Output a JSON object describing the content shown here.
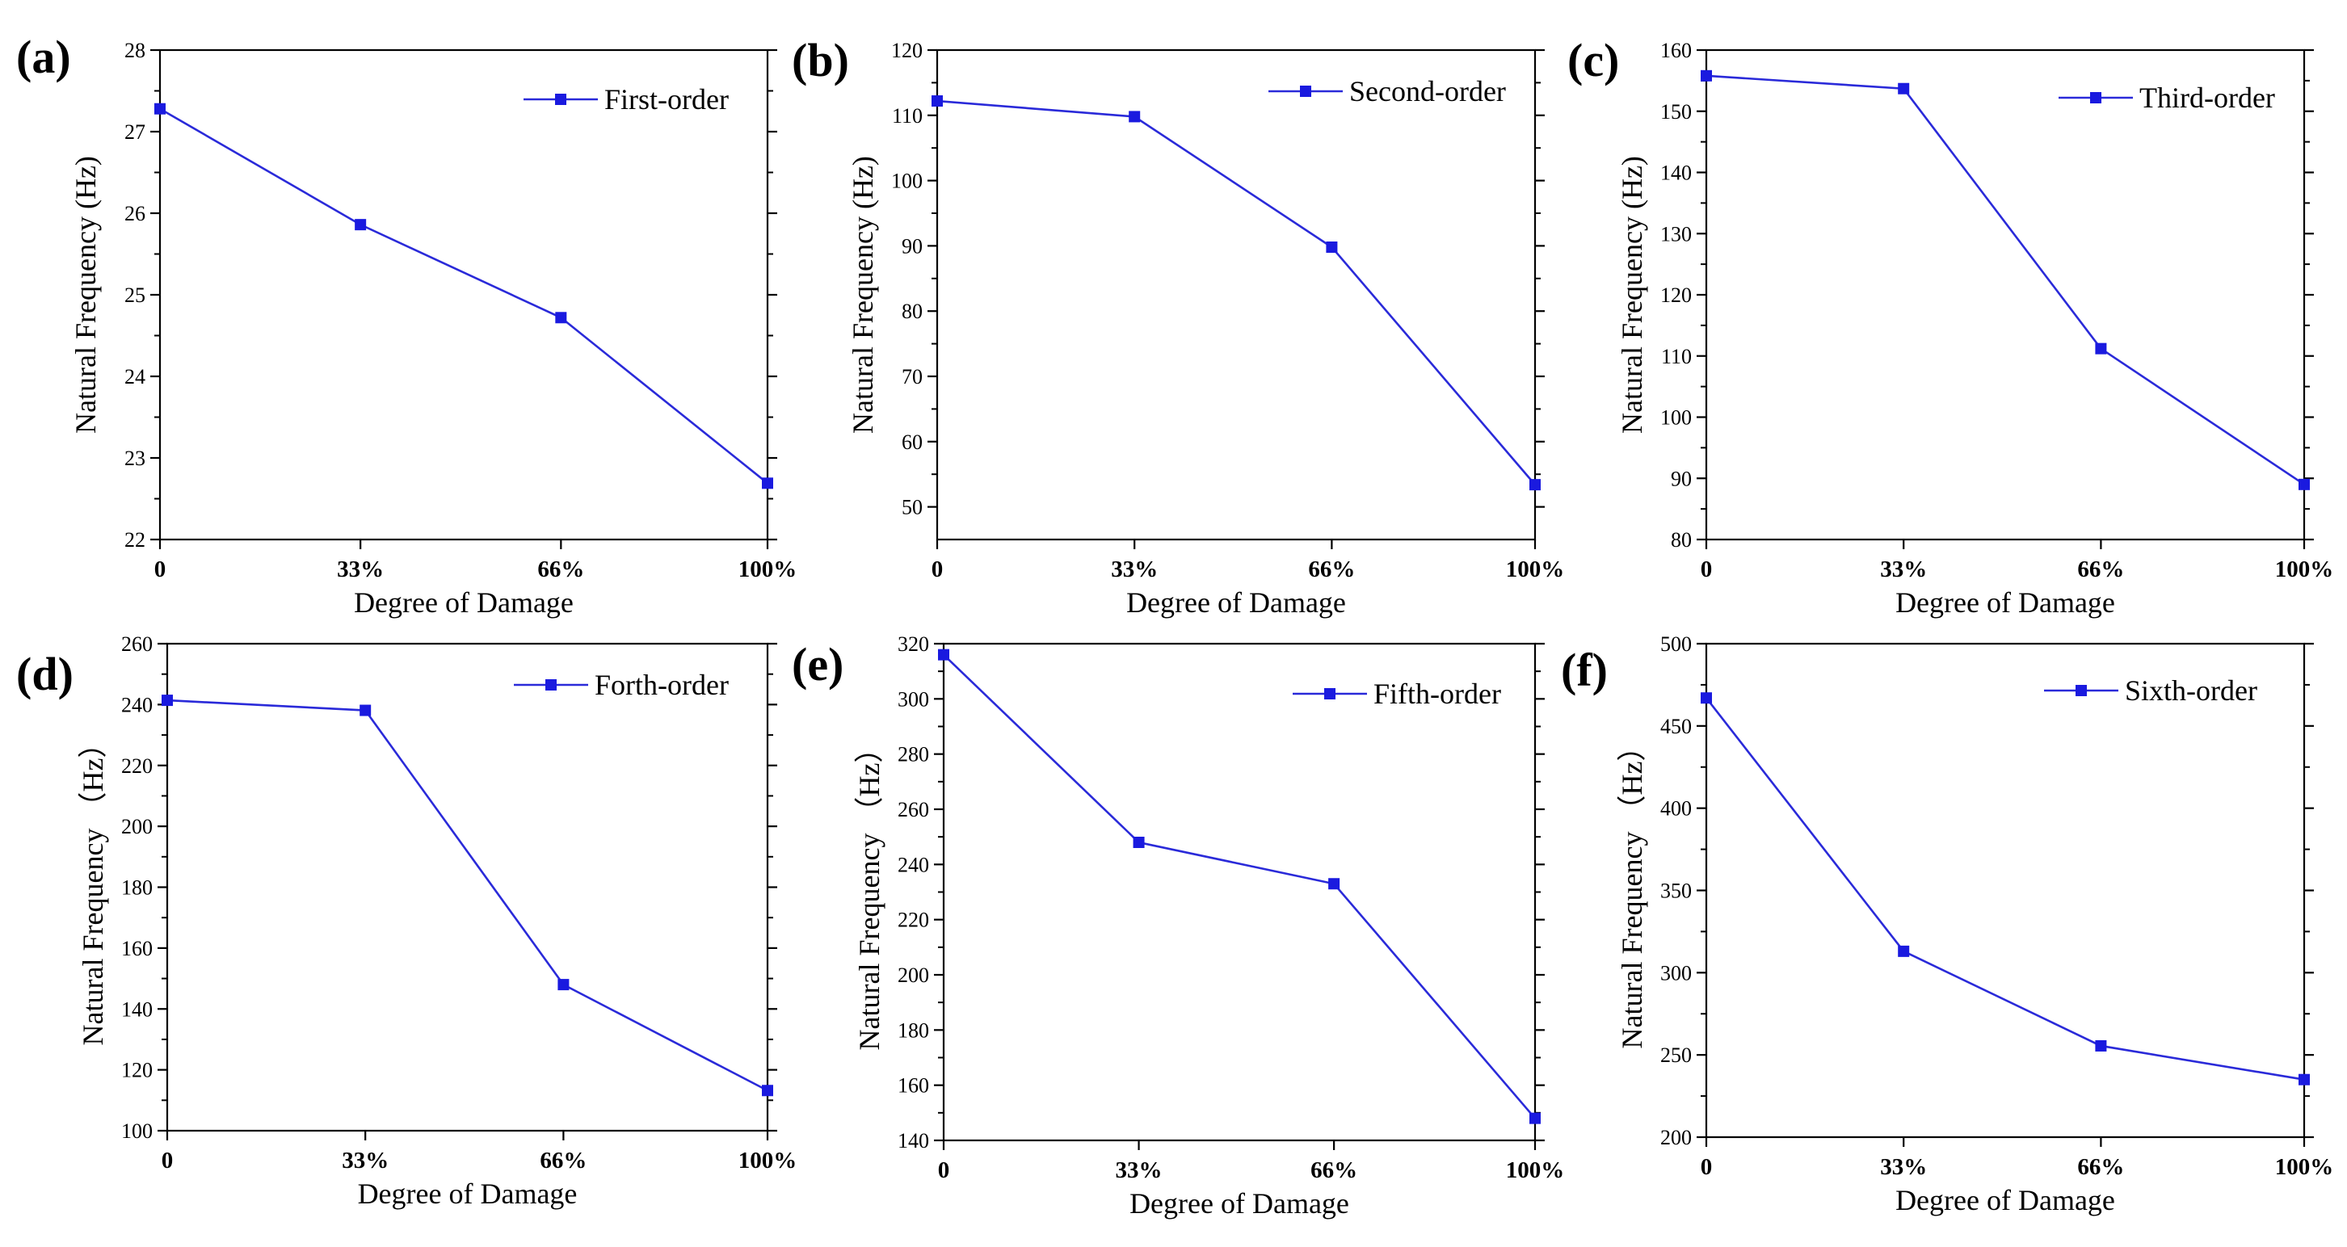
{
  "figure": {
    "accent_color": "#1a1adf",
    "marker_icon": "square-marker",
    "series_line_color": "#2a2ad9"
  },
  "chart_data": [
    {
      "type": "line",
      "panel_label": "(a)",
      "xlabel": "Degree of Damage",
      "ylabel": "Natural Frequency (Hz)",
      "categories": [
        "0",
        "33%",
        "66%",
        "100%"
      ],
      "x": [
        0,
        33,
        66,
        100
      ],
      "xlim": [
        0,
        100
      ],
      "ylim": [
        22,
        28
      ],
      "yticks": [
        22,
        23,
        24,
        25,
        26,
        27,
        28
      ],
      "grid": false,
      "legend_position": "top-right",
      "series": [
        {
          "name": "First-order",
          "values": [
            27.28,
            25.86,
            24.72,
            22.69
          ]
        }
      ]
    },
    {
      "type": "line",
      "panel_label": "(b)",
      "xlabel": "Degree of Damage",
      "ylabel": "Natural Frequency (Hz)",
      "categories": [
        "0",
        "33%",
        "66%",
        "100%"
      ],
      "x": [
        0,
        33,
        66,
        100
      ],
      "xlim": [
        0,
        100
      ],
      "ylim": [
        45,
        120
      ],
      "yticks": [
        50,
        60,
        70,
        80,
        90,
        100,
        110,
        120
      ],
      "grid": false,
      "legend_position": "top-right",
      "series": [
        {
          "name": "Second-order",
          "values": [
            112.2,
            109.8,
            89.8,
            53.4
          ]
        }
      ]
    },
    {
      "type": "line",
      "panel_label": "(c)",
      "xlabel": "Degree of Damage",
      "ylabel": "Natural Frequency (Hz)",
      "categories": [
        "0",
        "33%",
        "66%",
        "100%"
      ],
      "x": [
        0,
        33,
        66,
        100
      ],
      "xlim": [
        0,
        100
      ],
      "ylim": [
        80,
        160
      ],
      "yticks": [
        80,
        90,
        100,
        110,
        120,
        130,
        140,
        150,
        160
      ],
      "grid": false,
      "legend_position": "top-right",
      "series": [
        {
          "name": "Third-order",
          "values": [
            155.8,
            153.7,
            111.2,
            89.0
          ]
        }
      ]
    },
    {
      "type": "line",
      "panel_label": "(d)",
      "xlabel": "Degree of Damage",
      "ylabel": "Natural Frequency （Hz）",
      "categories": [
        "0",
        "33%",
        "66%",
        "100%"
      ],
      "x": [
        0,
        33,
        66,
        100
      ],
      "xlim": [
        0,
        100
      ],
      "ylim": [
        100,
        260
      ],
      "yticks": [
        100,
        120,
        140,
        160,
        180,
        200,
        220,
        240,
        260
      ],
      "grid": false,
      "legend_position": "top-right",
      "series": [
        {
          "name": "Forth-order",
          "values": [
            241.4,
            238.1,
            148.0,
            113.2
          ]
        }
      ]
    },
    {
      "type": "line",
      "panel_label": "(e)",
      "xlabel": "Degree of Damage",
      "ylabel": "Natural Frequency （Hz）",
      "categories": [
        "0",
        "33%",
        "66%",
        "100%"
      ],
      "x": [
        0,
        33,
        66,
        100
      ],
      "xlim": [
        0,
        100
      ],
      "ylim": [
        140,
        320
      ],
      "yticks": [
        140,
        160,
        180,
        200,
        220,
        240,
        260,
        280,
        300,
        320
      ],
      "grid": false,
      "legend_position": "top-right",
      "series": [
        {
          "name": "Fifth-order",
          "values": [
            316.0,
            248.0,
            233.0,
            148.0
          ]
        }
      ]
    },
    {
      "type": "line",
      "panel_label": "(f)",
      "xlabel": "Degree of Damage",
      "ylabel": "Natural Frequency （Hz）",
      "categories": [
        "0",
        "33%",
        "66%",
        "100%"
      ],
      "x": [
        0,
        33,
        66,
        100
      ],
      "xlim": [
        0,
        100
      ],
      "ylim": [
        200,
        500
      ],
      "yticks": [
        200,
        250,
        300,
        350,
        400,
        450,
        500
      ],
      "grid": false,
      "legend_position": "top-right",
      "series": [
        {
          "name": "Sixth-order",
          "values": [
            467.0,
            313.0,
            255.5,
            235.0
          ]
        }
      ]
    }
  ]
}
